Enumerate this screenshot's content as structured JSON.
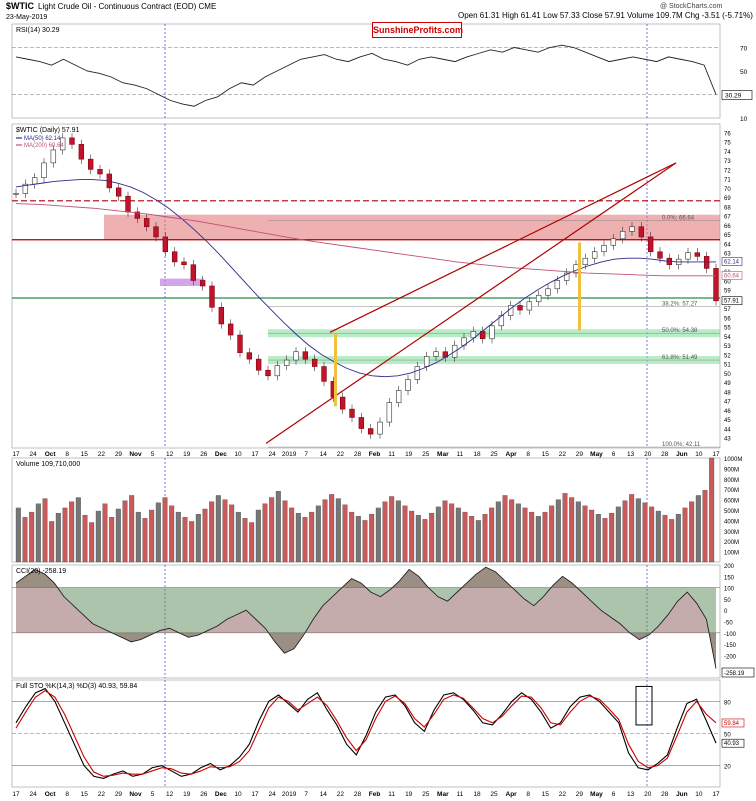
{
  "header": {
    "symbol": "$WTIC",
    "description": "Light Crude Oil - Continuous Contract (EOD) CME",
    "date": "23-May-2019",
    "stats": "Open 61.31  High 61.41  Low 57.33  Close 57.91  Volume 109.7M  Chg -3.51 (-5.71%) ▼",
    "copyright": "@ StockCharts.com",
    "brand": "SunshineProfits.com"
  },
  "chart_data": [
    {
      "type": "line",
      "panel": "rsi",
      "title": "RSI(14) 30.29",
      "last_value_label": "30.29",
      "ylim": [
        10,
        90
      ],
      "y_ticks": [
        70,
        50,
        30,
        10
      ],
      "overbought": 70,
      "oversold": 30,
      "values": [
        62,
        60,
        58,
        55,
        60,
        55,
        50,
        48,
        45,
        40,
        38,
        35,
        30,
        25,
        22,
        20,
        25,
        28,
        35,
        40,
        38,
        45,
        50,
        55,
        60,
        62,
        64,
        60,
        58,
        62,
        65,
        60,
        58,
        55,
        60,
        62,
        60,
        58,
        62,
        65,
        68,
        66,
        70,
        68,
        66,
        70,
        72,
        70,
        66,
        62,
        58,
        60,
        62,
        60,
        58,
        62,
        60,
        58,
        55,
        30
      ]
    },
    {
      "type": "candlestick",
      "panel": "price",
      "title": "$WTIC (Daily) 57.91",
      "legend": [
        {
          "name": "MA(50) 62.14",
          "color": "#2b2b8c"
        },
        {
          "name": "MA(200) 60.64",
          "color": "#c0507a"
        }
      ],
      "ylim": [
        42,
        77
      ],
      "y_ticks": [
        43,
        44,
        45,
        46,
        47,
        48,
        49,
        50,
        51,
        52,
        53,
        54,
        55,
        56,
        57,
        58,
        59,
        60,
        61,
        62,
        63,
        64,
        65,
        66,
        67,
        68,
        69,
        70,
        71,
        72,
        73,
        74,
        75,
        76
      ],
      "price_labels": [
        "62.14",
        "60.64",
        "57.91"
      ],
      "fib_levels": [
        {
          "label": "0.0%: 66.64",
          "value": 66.6
        },
        {
          "label": "38.2%: 57.27",
          "value": 57.3
        },
        {
          "label": "50.0%: 54.38",
          "value": 54.4
        },
        {
          "label": "61.8%: 51.49",
          "value": 51.5
        },
        {
          "label": "100.0%: 42.11",
          "value": 42.1
        }
      ],
      "close": [
        69.5,
        70.5,
        71.2,
        72.8,
        74.2,
        75.5,
        74.8,
        73.2,
        72.1,
        71.6,
        70.1,
        69.2,
        67.5,
        66.8,
        65.9,
        64.8,
        63.2,
        62.1,
        61.8,
        60.1,
        59.5,
        57.2,
        55.4,
        54.2,
        52.3,
        51.6,
        50.4,
        49.8,
        50.9,
        51.5,
        52.4,
        51.6,
        50.8,
        49.2,
        47.5,
        46.2,
        45.3,
        44.1,
        43.5,
        44.8,
        46.9,
        48.2,
        49.4,
        50.8,
        51.9,
        52.4,
        51.8,
        53.1,
        53.9,
        54.6,
        53.8,
        55.2,
        56.3,
        57.4,
        56.9,
        57.8,
        58.5,
        59.2,
        60.1,
        60.9,
        61.8,
        62.5,
        63.2,
        63.9,
        64.6,
        65.4,
        65.9,
        64.8,
        63.2,
        62.5,
        61.8,
        62.4,
        63.1,
        62.7,
        61.4,
        57.9
      ],
      "ma50": [
        70.2,
        70.4,
        70.6,
        70.8,
        70.9,
        71.0,
        71.0,
        70.9,
        70.6,
        70.2,
        69.6,
        68.8,
        67.9,
        66.8,
        65.6,
        64.3,
        62.9,
        61.4,
        59.9,
        58.4,
        57.0,
        55.6,
        54.3,
        53.1,
        52.1,
        51.3,
        50.6,
        50.1,
        49.8,
        49.7,
        49.8,
        50.1,
        50.6,
        51.2,
        52.0,
        52.9,
        53.9,
        55.0,
        56.1,
        57.2,
        58.2,
        59.1,
        59.9,
        60.6,
        61.2,
        61.7,
        62.1,
        62.4,
        62.5,
        62.5,
        62.4,
        62.2,
        62.1,
        62.1,
        62.1,
        62.1
      ],
      "ma200": [
        68.4,
        68.3,
        68.1,
        67.9,
        67.6,
        67.3,
        66.9,
        66.5,
        66.0,
        65.5,
        65.0,
        64.5,
        64.1,
        63.7,
        63.3,
        62.9,
        62.5,
        62.1,
        61.8,
        61.5,
        61.3,
        61.1,
        60.9,
        60.8,
        60.7,
        60.6,
        60.6,
        60.6
      ],
      "bull_wedge_lines": true,
      "x_labels": [
        "17",
        "24",
        "Oct",
        "8",
        "15",
        "22",
        "29",
        "Nov",
        "5",
        "12",
        "19",
        "26",
        "Dec",
        "10",
        "17",
        "24",
        "2019",
        "7",
        "14",
        "22",
        "28",
        "Feb",
        "11",
        "19",
        "25",
        "Mar",
        "11",
        "18",
        "25",
        "Apr",
        "8",
        "15",
        "22",
        "29",
        "May",
        "6",
        "13",
        "20",
        "28",
        "Jun",
        "10",
        "17"
      ]
    },
    {
      "type": "bar",
      "panel": "volume",
      "title": "Volume 109,710,000",
      "y_ticks": [
        "1000M",
        "900M",
        "800M",
        "700M",
        "600M",
        "500M",
        "400M",
        "300M",
        "200M",
        "100M"
      ],
      "ylim": [
        0,
        1000
      ],
      "values": [
        520,
        430,
        480,
        560,
        610,
        390,
        470,
        520,
        580,
        620,
        450,
        380,
        490,
        560,
        430,
        510,
        590,
        640,
        480,
        420,
        500,
        570,
        620,
        540,
        480,
        430,
        390,
        460,
        510,
        580,
        640,
        600,
        550,
        480,
        420,
        380,
        500,
        560,
        620,
        680,
        590,
        520,
        470,
        430,
        480,
        540,
        600,
        650,
        610,
        550,
        480,
        440,
        400,
        460,
        520,
        580,
        630,
        590,
        540,
        490,
        450,
        410,
        470,
        530,
        590,
        560,
        520,
        480,
        440,
        400,
        460,
        520,
        580,
        640,
        600,
        560,
        520,
        480,
        440,
        480,
        540,
        600,
        660,
        620,
        580,
        540,
        500,
        460,
        420,
        470,
        530,
        590,
        650,
        610,
        570,
        530,
        490,
        450,
        410,
        460,
        520,
        580,
        640,
        690,
        1000
      ]
    },
    {
      "type": "area",
      "panel": "cci",
      "title": "CCI(20) -258.19",
      "last_value_label": "-258.19",
      "ylim": [
        -300,
        200
      ],
      "y_ticks": [
        "200",
        "150",
        "100",
        "50",
        "0",
        "-50",
        "-100",
        "-150",
        "-200"
      ],
      "values": [
        120,
        150,
        180,
        160,
        120,
        60,
        20,
        -20,
        -60,
        -80,
        -100,
        -120,
        -140,
        -130,
        -110,
        -90,
        -80,
        -100,
        -120,
        -110,
        -90,
        -70,
        -40,
        -20,
        0,
        -40,
        -80,
        -140,
        -190,
        -170,
        -110,
        -40,
        20,
        60,
        100,
        140,
        120,
        80,
        60,
        90,
        130,
        180,
        150,
        100,
        60,
        40,
        80,
        120,
        160,
        190,
        170,
        130,
        90,
        50,
        20,
        60,
        110,
        150,
        120,
        80,
        40,
        0,
        -30,
        -60,
        -100,
        -130,
        -110,
        -70,
        -20,
        40,
        80,
        30,
        -40,
        -258
      ]
    },
    {
      "type": "line",
      "panel": "sto",
      "title": "Full STO %K(14,3) %D(3) 40.93, 59.84",
      "series": [
        {
          "name": "%K",
          "color": "#000000",
          "values": [
            60,
            75,
            88,
            92,
            80,
            60,
            40,
            20,
            10,
            8,
            12,
            15,
            10,
            12,
            18,
            20,
            15,
            10,
            12,
            18,
            22,
            16,
            20,
            28,
            40,
            62,
            80,
            86,
            78,
            70,
            82,
            88,
            72,
            58,
            40,
            30,
            48,
            70,
            84,
            86,
            76,
            60,
            52,
            72,
            86,
            88,
            82,
            72,
            60,
            58,
            68,
            80,
            88,
            82,
            70,
            55,
            60,
            75,
            84,
            86,
            80,
            70,
            60,
            32,
            18,
            16,
            22,
            30,
            55,
            78,
            82,
            62,
            41
          ]
        },
        {
          "name": "%D",
          "color": "#cc0000",
          "values": [
            55,
            70,
            84,
            90,
            84,
            68,
            48,
            28,
            14,
            10,
            11,
            13,
            12,
            12,
            15,
            18,
            17,
            13,
            12,
            15,
            19,
            18,
            19,
            24,
            34,
            54,
            74,
            84,
            80,
            72,
            78,
            84,
            76,
            62,
            46,
            34,
            44,
            64,
            80,
            85,
            78,
            64,
            56,
            68,
            82,
            86,
            83,
            74,
            64,
            60,
            66,
            76,
            85,
            84,
            74,
            60,
            58,
            70,
            80,
            85,
            82,
            73,
            63,
            40,
            24,
            18,
            20,
            27,
            48,
            70,
            80,
            68,
            60
          ]
        }
      ],
      "ylim": [
        0,
        100
      ],
      "y_ticks": [
        "80",
        "50",
        "20"
      ],
      "value_labels": [
        "59.84",
        "40.93"
      ],
      "x_labels": [
        "17",
        "24",
        "Oct",
        "8",
        "15",
        "22",
        "29",
        "Nov",
        "5",
        "12",
        "19",
        "26",
        "Dec",
        "10",
        "17",
        "24",
        "2019",
        "7",
        "14",
        "22",
        "28",
        "Feb",
        "11",
        "19",
        "25",
        "Mar",
        "11",
        "18",
        "25",
        "Apr",
        "8",
        "15",
        "22",
        "29",
        "May",
        "6",
        "13",
        "20",
        "28",
        "Jun",
        "10",
        "17"
      ]
    }
  ]
}
